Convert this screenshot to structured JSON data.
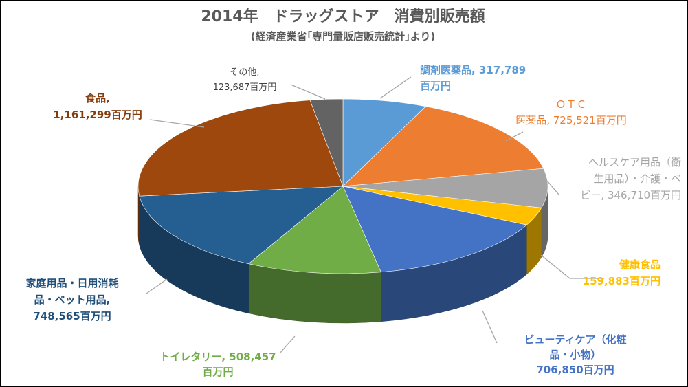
{
  "chart_data": {
    "type": "pie",
    "variant": "3d-exploded-base",
    "title": "2014年　ドラッグストア　消費別販売額",
    "subtitle": "(経済産業省｢専門量販店販売統計｣より)",
    "unit": "百万円",
    "start_angle": "top-clockwise",
    "slices": [
      {
        "name": "調剤医薬品",
        "value": 317789,
        "color": "#5B9BD5",
        "label_lines": [
          "調剤医薬品, 317,789",
          "百万円"
        ]
      },
      {
        "name": "ＯＴＣ医薬品",
        "value": 725521,
        "color": "#ED7D31",
        "label_lines": [
          "ＯＴＣ",
          "医薬品, 725,521百万円"
        ]
      },
      {
        "name": "ヘルスケア用品（衛生用品）・介護・ベビー",
        "value": 346710,
        "color": "#A5A5A5",
        "label_lines": [
          "ヘルスケア用品（衛",
          "生用品）・介護・ベ",
          "ビー, 346,710百万円"
        ]
      },
      {
        "name": "健康食品",
        "value": 159883,
        "color": "#FFC000",
        "label_lines": [
          "健康食品",
          "159,883百万円"
        ]
      },
      {
        "name": "ビューティケア（化粧品・小物）",
        "value": 706850,
        "color": "#4472C4",
        "label_lines": [
          "ビューティケア（化粧",
          "品・小物）",
          "706,850百万円"
        ]
      },
      {
        "name": "トイレタリー",
        "value": 508457,
        "color": "#70AD47",
        "label_lines": [
          "トイレタリー, 508,457",
          "百万円"
        ]
      },
      {
        "name": "家庭用品・日用消耗品・ペット用品",
        "value": 748565,
        "color": "#255E91",
        "label_lines": [
          "家庭用品・日用消耗",
          "品・ペット用品,",
          "748,565百万円"
        ]
      },
      {
        "name": "食品",
        "value": 1161299,
        "color": "#9E480E",
        "label_lines": [
          "食品,",
          "1,161,299百万円"
        ]
      },
      {
        "name": "その他",
        "value": 123687,
        "color": "#636363",
        "label_lines": [
          "その他,",
          "123,687百万円"
        ]
      }
    ]
  }
}
